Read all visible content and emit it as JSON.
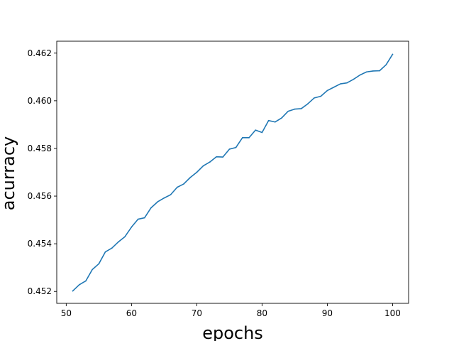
{
  "chart_data": {
    "type": "line",
    "title": "",
    "xlabel": "epochs",
    "ylabel": "acurracy",
    "xlim": [
      48.55,
      102.45
    ],
    "ylim": [
      0.4515,
      0.4625
    ],
    "xticks": [
      50,
      60,
      70,
      80,
      90,
      100
    ],
    "yticks": [
      0.452,
      0.454,
      0.456,
      0.458,
      0.46,
      0.462
    ],
    "ytick_labels": [
      "0.452",
      "0.454",
      "0.456",
      "0.458",
      "0.460",
      "0.462"
    ],
    "grid": false,
    "legend": "none",
    "series": [
      {
        "color": "#1f77b4",
        "x": [
          51,
          52,
          53,
          54,
          55,
          56,
          57,
          58,
          59,
          60,
          61,
          62,
          63,
          64,
          65,
          66,
          67,
          68,
          69,
          70,
          71,
          72,
          73,
          74,
          75,
          76,
          77,
          78,
          79,
          80,
          81,
          82,
          83,
          84,
          85,
          86,
          87,
          88,
          89,
          90,
          91,
          92,
          93,
          94,
          95,
          96,
          97,
          98,
          99,
          100
        ],
        "y": [
          0.45202,
          0.45228,
          0.45244,
          0.45292,
          0.45316,
          0.45366,
          0.45382,
          0.45408,
          0.4543,
          0.4547,
          0.45503,
          0.45509,
          0.45551,
          0.45576,
          0.45592,
          0.45606,
          0.45637,
          0.45651,
          0.45678,
          0.457,
          0.45727,
          0.45743,
          0.45765,
          0.45764,
          0.45797,
          0.45804,
          0.45845,
          0.45845,
          0.45877,
          0.45867,
          0.45917,
          0.45911,
          0.45928,
          0.45956,
          0.45965,
          0.45967,
          0.45987,
          0.46012,
          0.46019,
          0.46043,
          0.46057,
          0.46071,
          0.46075,
          0.4609,
          0.46108,
          0.46121,
          0.46125,
          0.46126,
          0.46151,
          0.46195
        ]
      }
    ]
  }
}
